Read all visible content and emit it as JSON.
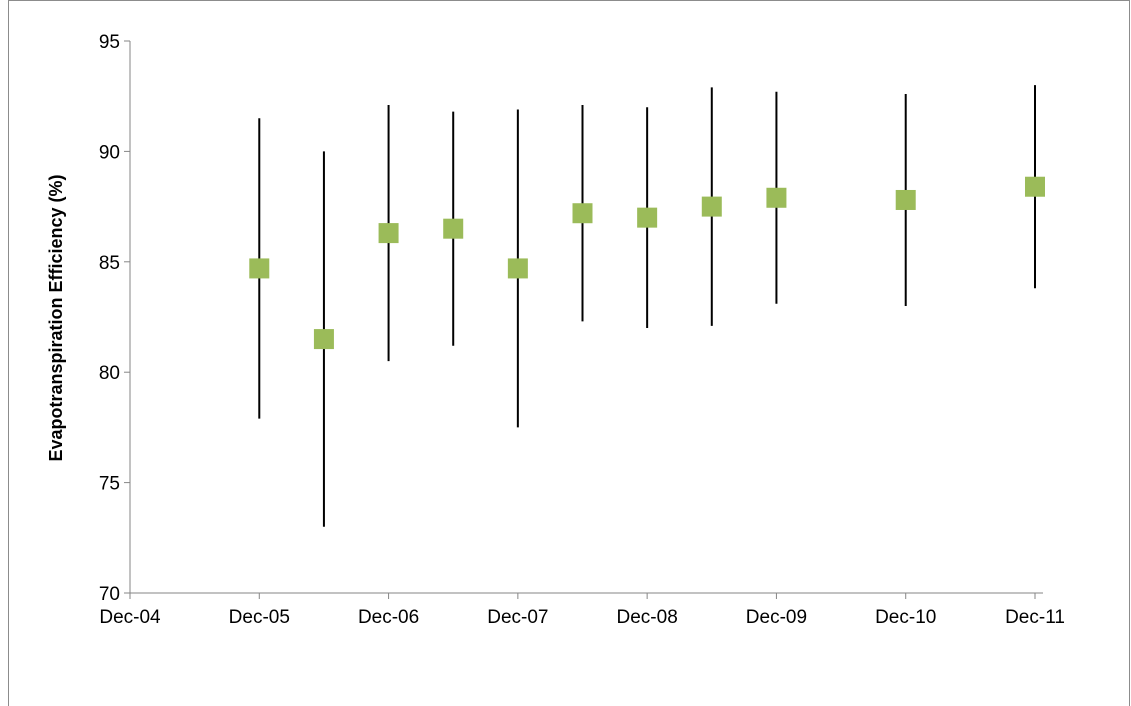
{
  "chart_data": {
    "type": "scatter",
    "title": "",
    "xlabel": "",
    "ylabel": "Evapotranspiration Efficiency (%)",
    "x_tick_labels": [
      "Dec-04",
      "Dec-05",
      "Dec-06",
      "Dec-07",
      "Dec-08",
      "Dec-09",
      "Dec-10",
      "Dec-11"
    ],
    "y_tick_labels": [
      "70",
      "75",
      "80",
      "85",
      "90",
      "95"
    ],
    "ylim": [
      70,
      95
    ],
    "xlim": [
      "2004-12",
      "2011-12"
    ],
    "grid": false,
    "legend": "none",
    "marker": "square",
    "error_bars": "vertical",
    "series": [
      {
        "marker_color": "#9bbb59",
        "error_bar_color": "#000000",
        "points": [
          {
            "x": "2005-12",
            "y": 84.7,
            "low": 77.9,
            "high": 91.5
          },
          {
            "x": "2006-06",
            "y": 81.5,
            "low": 73.0,
            "high": 90.0
          },
          {
            "x": "2006-12",
            "y": 86.3,
            "low": 80.5,
            "high": 92.1
          },
          {
            "x": "2007-06",
            "y": 86.5,
            "low": 81.2,
            "high": 91.8
          },
          {
            "x": "2007-12",
            "y": 84.7,
            "low": 77.5,
            "high": 91.9
          },
          {
            "x": "2008-06",
            "y": 87.2,
            "low": 82.3,
            "high": 92.1
          },
          {
            "x": "2008-12",
            "y": 87.0,
            "low": 82.0,
            "high": 92.0
          },
          {
            "x": "2009-06",
            "y": 87.5,
            "low": 82.1,
            "high": 92.9
          },
          {
            "x": "2009-12",
            "y": 87.9,
            "low": 83.1,
            "high": 92.7
          },
          {
            "x": "2010-12",
            "y": 87.8,
            "low": 83.0,
            "high": 92.6
          },
          {
            "x": "2011-12",
            "y": 88.4,
            "low": 83.8,
            "high": 93.0
          }
        ]
      }
    ]
  }
}
